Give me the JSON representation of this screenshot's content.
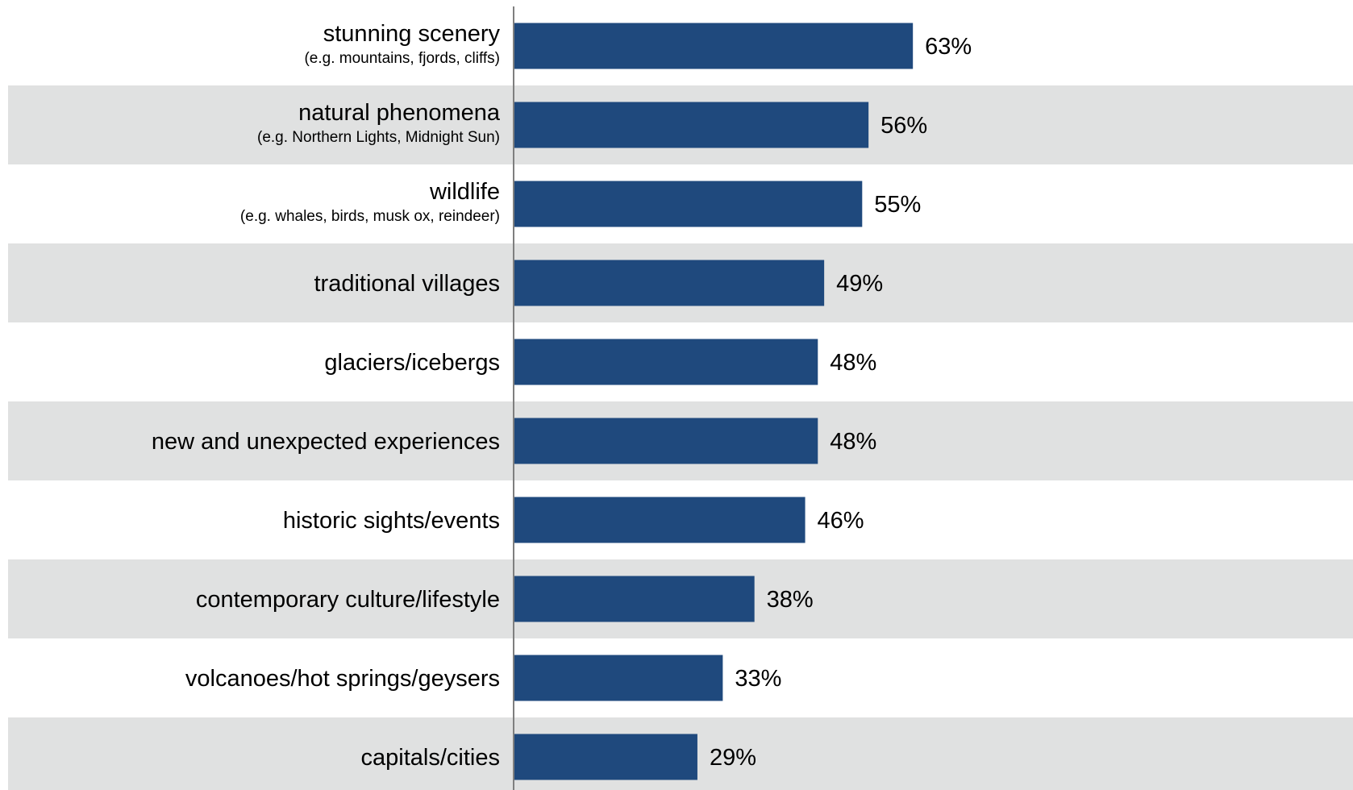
{
  "chart_data": {
    "type": "bar",
    "orientation": "horizontal",
    "categories": [
      "stunning scenery",
      "natural phenomena",
      "wildlife",
      "traditional villages",
      "glaciers/icebergs",
      "new and unexpected experiences",
      "historic sights/events",
      "contemporary culture/lifestyle",
      "volcanoes/hot springs/geysers",
      "capitals/cities"
    ],
    "subcategories": [
      "(e.g. mountains, fjords, cliffs)",
      "(e.g. Northern Lights, Midnight Sun)",
      "(e.g. whales, birds, musk ox, reindeer)",
      "",
      "",
      "",
      "",
      "",
      "",
      ""
    ],
    "values": [
      63,
      56,
      55,
      49,
      48,
      48,
      46,
      38,
      33,
      29
    ],
    "value_labels": [
      "63%",
      "56%",
      "55%",
      "49%",
      "48%",
      "48%",
      "46%",
      "38%",
      "33%",
      "29%"
    ],
    "xlim": [
      0,
      100
    ],
    "bar_color": "#1f497d",
    "band_color": "#e0e1e1",
    "axis_color": "#7f7f7f",
    "alternating_bands": true,
    "grid": false,
    "legend": "none"
  }
}
